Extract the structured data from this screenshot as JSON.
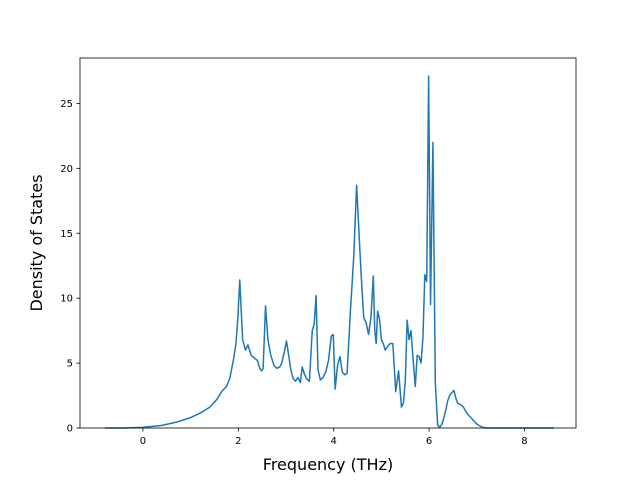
{
  "chart_data": {
    "type": "line",
    "title": "",
    "xlabel": "Frequency (THz)",
    "ylabel": "Density of States",
    "xlim": [
      -1.32,
      9.08
    ],
    "ylim": [
      0,
      28.5
    ],
    "xticks": [
      0,
      2,
      4,
      6,
      8
    ],
    "yticks": [
      0,
      5,
      10,
      15,
      20,
      25
    ],
    "grid": false,
    "legend": "none",
    "series": [
      {
        "color": "#1f77b4",
        "x": [
          -0.78,
          -0.4,
          0.0,
          0.4,
          0.7,
          1.0,
          1.2,
          1.4,
          1.55,
          1.65,
          1.75,
          1.82,
          1.9,
          1.95,
          1.99,
          2.03,
          2.09,
          2.15,
          2.2,
          2.27,
          2.33,
          2.4,
          2.45,
          2.49,
          2.52,
          2.57,
          2.62,
          2.68,
          2.75,
          2.81,
          2.87,
          2.91,
          2.96,
          3.01,
          3.06,
          3.1,
          3.15,
          3.2,
          3.25,
          3.3,
          3.34,
          3.38,
          3.43,
          3.49,
          3.55,
          3.59,
          3.63,
          3.67,
          3.72,
          3.78,
          3.84,
          3.89,
          3.95,
          3.99,
          4.03,
          4.08,
          4.13,
          4.18,
          4.23,
          4.28,
          4.35,
          4.42,
          4.48,
          4.53,
          4.58,
          4.63,
          4.68,
          4.73,
          4.78,
          4.83,
          4.86,
          4.89,
          4.92,
          4.96,
          5.0,
          5.04,
          5.08,
          5.13,
          5.18,
          5.24,
          5.3,
          5.36,
          5.42,
          5.46,
          5.5,
          5.54,
          5.58,
          5.62,
          5.66,
          5.71,
          5.75,
          5.79,
          5.83,
          5.87,
          5.91,
          5.95,
          5.99,
          6.03,
          6.08,
          6.13,
          6.18,
          6.22,
          6.27,
          6.31,
          6.35,
          6.39,
          6.43,
          6.47,
          6.52,
          6.56,
          6.6,
          6.66,
          6.72,
          6.8,
          6.9,
          7.0,
          7.12,
          7.22,
          7.32,
          7.42,
          7.52,
          7.62,
          7.72,
          7.8,
          7.85,
          7.9,
          8.0,
          8.2,
          8.6
        ],
        "y": [
          0,
          0,
          0.05,
          0.2,
          0.45,
          0.8,
          1.15,
          1.6,
          2.2,
          2.8,
          3.2,
          3.8,
          5.3,
          6.5,
          8.5,
          11.4,
          6.8,
          6.0,
          6.4,
          5.6,
          5.4,
          5.2,
          4.6,
          4.4,
          4.6,
          9.4,
          6.8,
          5.6,
          4.8,
          4.6,
          4.7,
          5.0,
          5.8,
          6.7,
          5.5,
          4.5,
          3.8,
          3.6,
          3.9,
          3.5,
          4.7,
          4.2,
          3.8,
          3.6,
          7.5,
          8.0,
          10.2,
          4.5,
          3.7,
          3.9,
          4.4,
          5.2,
          7.1,
          7.2,
          3.0,
          4.8,
          5.5,
          4.3,
          4.1,
          4.2,
          9.0,
          13.2,
          18.7,
          15.0,
          11.5,
          8.5,
          8.1,
          7.2,
          8.5,
          11.7,
          7.5,
          6.5,
          9.0,
          8.4,
          6.8,
          6.5,
          6.0,
          6.3,
          6.5,
          6.5,
          2.8,
          4.4,
          1.6,
          1.9,
          3.6,
          8.3,
          6.8,
          7.5,
          5.5,
          3.2,
          5.6,
          5.5,
          5.0,
          6.9,
          11.8,
          11.3,
          27.1,
          9.5,
          22.0,
          3.5,
          0.2,
          0.05,
          0.3,
          0.8,
          1.4,
          2.1,
          2.5,
          2.7,
          2.9,
          2.3,
          1.9,
          1.8,
          1.6,
          1.1,
          0.7,
          0.3,
          0.05,
          0,
          0,
          0,
          0,
          0,
          0,
          0,
          0,
          0,
          0,
          0,
          0
        ]
      }
    ]
  }
}
